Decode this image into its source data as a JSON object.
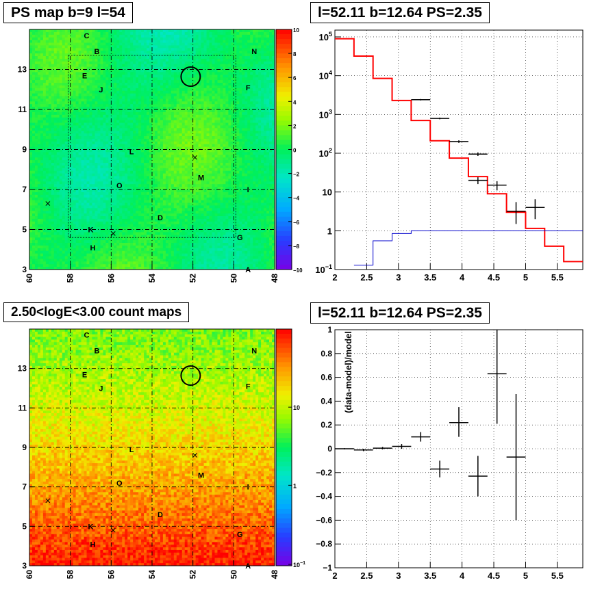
{
  "colors": {
    "map_green": "#22ee44",
    "data_black": "#000000",
    "model_red": "#ff0000",
    "model_blue": "#0000cc",
    "grid": "#000000"
  },
  "chart_data": [
    {
      "type": "heatmap",
      "title": "PS map b=9 l=54",
      "x_ticks": [
        "60",
        "58",
        "56",
        "54",
        "52",
        "50",
        "48"
      ],
      "y_ticks": [
        "3",
        "5",
        "7",
        "9",
        "11",
        "13"
      ],
      "xlim": [
        60,
        48
      ],
      "ylim": [
        3,
        15
      ],
      "colorbar": {
        "ticks": [
          "10",
          "8",
          "6",
          "4",
          "2",
          "0",
          "−2",
          "−4",
          "−6",
          "−8",
          "−10"
        ],
        "range": [
          -10,
          10
        ]
      },
      "sources": [
        {
          "label": "C",
          "l": 57.2,
          "b": 14.7
        },
        {
          "label": "B",
          "l": 56.7,
          "b": 13.9
        },
        {
          "label": "N",
          "l": 49.0,
          "b": 13.9
        },
        {
          "label": "E",
          "l": 57.3,
          "b": 12.7
        },
        {
          "label": "J",
          "l": 56.5,
          "b": 12.0
        },
        {
          "label": "F",
          "l": 49.3,
          "b": 12.1
        },
        {
          "label": "L",
          "l": 55.0,
          "b": 8.9
        },
        {
          "label": "M",
          "l": 51.6,
          "b": 7.6
        },
        {
          "label": "O",
          "l": 55.6,
          "b": 7.2
        },
        {
          "label": "I",
          "l": 49.3,
          "b": 7.0
        },
        {
          "label": "D",
          "l": 53.6,
          "b": 5.6
        },
        {
          "label": "K",
          "l": 57.0,
          "b": 5.0
        },
        {
          "label": "G",
          "l": 49.7,
          "b": 4.6
        },
        {
          "label": "H",
          "l": 56.9,
          "b": 4.1
        },
        {
          "label": "A",
          "l": 49.3,
          "b": 3.0
        }
      ],
      "crosses": [
        {
          "l": 59.1,
          "b": 6.3
        },
        {
          "l": 55.9,
          "b": 4.8
        },
        {
          "l": 51.9,
          "b": 8.6
        }
      ],
      "circle": {
        "l": 52.11,
        "b": 12.64
      },
      "roi_box": {
        "l": [
          58.1,
          49.9
        ],
        "b": [
          4.6,
          13.7
        ]
      }
    },
    {
      "type": "line",
      "title": "l=52.11 b=12.64 PS=2.35",
      "xlim": [
        2,
        5.9
      ],
      "ylim": [
        0.1,
        150000
      ],
      "yscale": "log",
      "x_ticks": [
        "2",
        "2.5",
        "3",
        "3.5",
        "4",
        "4.5",
        "5",
        "5.5"
      ],
      "y_ticks": [
        {
          "mant": "10",
          "exp": "5",
          "v": 100000
        },
        {
          "mant": "10",
          "exp": "4",
          "v": 10000
        },
        {
          "mant": "10",
          "exp": "3",
          "v": 1000
        },
        {
          "mant": "10",
          "exp": "2",
          "v": 100
        },
        {
          "mant": "10",
          "exp": "",
          "v": 10
        },
        {
          "mant": "1",
          "exp": "",
          "v": 1
        },
        {
          "mant": "10",
          "exp": "−1",
          "v": 0.1
        }
      ],
      "grid": true,
      "series": [
        {
          "kind": "step",
          "color": "#ff0000",
          "edges": [
            2,
            2.3,
            2.6,
            2.9,
            3.2,
            3.5,
            3.8,
            4.1,
            4.4,
            4.7,
            5.0,
            5.3,
            5.6,
            5.9
          ],
          "values": [
            90000,
            32000,
            8500,
            2300,
            700,
            210,
            75,
            25,
            9,
            3,
            1.15,
            0.4,
            0.16
          ]
        },
        {
          "kind": "step",
          "color": "#0000cc",
          "edges": [
            2.3,
            2.6,
            2.9,
            3.2,
            3.5,
            3.8,
            4.1,
            4.4,
            4.7,
            5.0,
            5.3,
            5.6,
            5.9
          ],
          "values": [
            0.13,
            0.55,
            0.85,
            1.0,
            1.0,
            1.0,
            1.0,
            1.0,
            1.0,
            1.0,
            1.0,
            1.0
          ]
        },
        {
          "kind": "errorbar",
          "color": "#000000",
          "points": [
            {
              "x": 3.35,
              "y": 2400,
              "xerr": 0.15,
              "ylo": 2300,
              "yhi": 2500
            },
            {
              "x": 3.65,
              "y": 790,
              "xerr": 0.15,
              "ylo": 750,
              "yhi": 830
            },
            {
              "x": 3.95,
              "y": 200,
              "xerr": 0.15,
              "ylo": 185,
              "yhi": 215
            },
            {
              "x": 4.25,
              "y": 95,
              "xerr": 0.15,
              "ylo": 85,
              "yhi": 105
            },
            {
              "x": 4.25,
              "y": 20,
              "xerr": 0.15,
              "ylo": 16,
              "yhi": 24
            },
            {
              "x": 4.55,
              "y": 15,
              "xerr": 0.15,
              "ylo": 11,
              "yhi": 19
            },
            {
              "x": 4.85,
              "y": 3.2,
              "xerr": 0.15,
              "ylo": 1.5,
              "yhi": 5.5
            },
            {
              "x": 5.15,
              "y": 4.0,
              "xerr": 0.15,
              "ylo": 2.0,
              "yhi": 6.5
            }
          ]
        }
      ]
    },
    {
      "type": "heatmap",
      "title": "2.50<logE<3.00 count maps",
      "x_ticks": [
        "60",
        "58",
        "56",
        "54",
        "52",
        "50",
        "48"
      ],
      "y_ticks": [
        "3",
        "5",
        "7",
        "9",
        "11",
        "13"
      ],
      "xlim": [
        60,
        48
      ],
      "ylim": [
        3,
        15
      ],
      "colorbar": {
        "ticks": [
          {
            "mant": "10",
            "exp": "",
            "v": 10
          },
          {
            "mant": "1",
            "exp": "",
            "v": 1
          },
          {
            "mant": "10",
            "exp": "−1",
            "v": 0.1
          }
        ],
        "scale": "log"
      }
    },
    {
      "type": "scatter",
      "title": "l=52.11 b=12.64 PS=2.35",
      "ylabel": "(data-model)/model",
      "xlim": [
        2,
        5.9
      ],
      "ylim": [
        -1,
        1
      ],
      "x_ticks": [
        "2",
        "2.5",
        "3",
        "3.5",
        "4",
        "4.5",
        "5",
        "5.5"
      ],
      "y_ticks": [
        "1",
        "0.8",
        "0.6",
        "0.4",
        "0.2",
        "0",
        "−0.2",
        "−0.4",
        "−0.6",
        "−0.8",
        "−1"
      ],
      "grid": true,
      "points": [
        {
          "x": 2.15,
          "y": 0.0,
          "xerr": 0.15,
          "ylo": -0.005,
          "yhi": 0.005
        },
        {
          "x": 2.45,
          "y": -0.01,
          "xerr": 0.15,
          "ylo": -0.02,
          "yhi": 0.0
        },
        {
          "x": 2.75,
          "y": 0.005,
          "xerr": 0.15,
          "ylo": -0.005,
          "yhi": 0.015
        },
        {
          "x": 3.05,
          "y": 0.02,
          "xerr": 0.15,
          "ylo": 0.0,
          "yhi": 0.04
        },
        {
          "x": 3.35,
          "y": 0.1,
          "xerr": 0.15,
          "ylo": 0.06,
          "yhi": 0.14
        },
        {
          "x": 3.65,
          "y": -0.17,
          "xerr": 0.15,
          "ylo": -0.24,
          "yhi": -0.1
        },
        {
          "x": 3.95,
          "y": 0.22,
          "xerr": 0.15,
          "ylo": 0.1,
          "yhi": 0.35
        },
        {
          "x": 4.25,
          "y": -0.23,
          "xerr": 0.15,
          "ylo": -0.4,
          "yhi": -0.06
        },
        {
          "x": 4.55,
          "y": 0.63,
          "xerr": 0.15,
          "ylo": 0.21,
          "yhi": 1.0
        },
        {
          "x": 4.85,
          "y": -0.07,
          "xerr": 0.15,
          "ylo": -0.6,
          "yhi": 0.46
        }
      ]
    }
  ]
}
